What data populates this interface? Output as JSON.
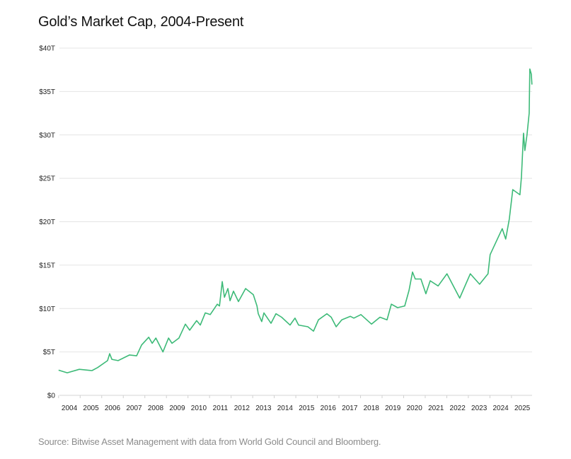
{
  "chart_data": {
    "type": "line",
    "title": "Gold’s Market Cap, 2004-Present",
    "source": "Source: Bitwise Asset Management with data from World Gold Council and Bloomberg.",
    "xlabel": "",
    "ylabel": "",
    "ylim": [
      0,
      40
    ],
    "xlim": [
      2004,
      2025.95
    ],
    "grid": true,
    "line_color": "#3dba78",
    "y_ticks": [
      {
        "value": 0,
        "label": "$0"
      },
      {
        "value": 5,
        "label": "$5T"
      },
      {
        "value": 10,
        "label": "$10T"
      },
      {
        "value": 15,
        "label": "$15T"
      },
      {
        "value": 20,
        "label": "$20T"
      },
      {
        "value": 25,
        "label": "$25T"
      },
      {
        "value": 30,
        "label": "$30T"
      },
      {
        "value": 35,
        "label": "$35T"
      },
      {
        "value": 40,
        "label": "$40T"
      }
    ],
    "x_ticks": [
      "2004",
      "2005",
      "2006",
      "2007",
      "2008",
      "2009",
      "2010",
      "2011",
      "2012",
      "2013",
      "2014",
      "2015",
      "2016",
      "2017",
      "2018",
      "2019",
      "2020",
      "2021",
      "2022",
      "2023",
      "2024",
      "2025"
    ],
    "series": [
      {
        "x": [
          2004.0,
          2004.4,
          2004.96,
          2005.55,
          2005.81,
          2006.27,
          2006.37,
          2006.47,
          2006.76,
          2007.29,
          2007.62,
          2007.85,
          2008.18,
          2008.34,
          2008.51,
          2008.84,
          2009.1,
          2009.26,
          2009.58,
          2009.88,
          2010.08,
          2010.4,
          2010.57,
          2010.8,
          2011.03,
          2011.36,
          2011.46,
          2011.59,
          2011.69,
          2011.85,
          2011.95,
          2012.11,
          2012.34,
          2012.67,
          2013.03,
          2013.2,
          2013.26,
          2013.42,
          2013.52,
          2013.85,
          2014.08,
          2014.34,
          2014.73,
          2014.96,
          2015.13,
          2015.56,
          2015.82,
          2016.05,
          2016.44,
          2016.64,
          2016.87,
          2017.13,
          2017.53,
          2017.69,
          2018.02,
          2018.51,
          2018.9,
          2019.23,
          2019.43,
          2019.72,
          2020.05,
          2020.25,
          2020.41,
          2020.54,
          2020.8,
          2021.03,
          2021.23,
          2021.6,
          2022.01,
          2022.6,
          2023.09,
          2023.52,
          2023.91,
          2024.01,
          2024.57,
          2024.73,
          2024.9,
          2025.06,
          2025.39,
          2025.46,
          2025.56,
          2025.62,
          2025.72,
          2025.82,
          2025.85,
          2025.92,
          2025.95
        ],
        "y": [
          2.9,
          2.6,
          3.0,
          2.85,
          3.2,
          4.0,
          4.8,
          4.15,
          4.0,
          4.65,
          4.55,
          5.8,
          6.7,
          6.0,
          6.6,
          5.0,
          6.6,
          6.0,
          6.6,
          8.2,
          7.5,
          8.6,
          8.1,
          9.5,
          9.3,
          10.5,
          10.3,
          13.1,
          11.3,
          12.3,
          10.9,
          12.0,
          10.8,
          12.3,
          11.6,
          10.3,
          9.4,
          8.5,
          9.5,
          8.3,
          9.4,
          9.0,
          8.1,
          8.9,
          8.1,
          7.9,
          7.4,
          8.7,
          9.4,
          9.0,
          7.9,
          8.7,
          9.1,
          8.9,
          9.3,
          8.2,
          9.0,
          8.7,
          10.5,
          10.1,
          10.3,
          12.1,
          14.2,
          13.4,
          13.4,
          11.7,
          13.2,
          12.6,
          14.0,
          11.2,
          14.0,
          12.8,
          14.0,
          16.2,
          19.2,
          18.0,
          20.3,
          23.7,
          23.1,
          25.1,
          30.2,
          28.2,
          30.0,
          32.5,
          37.6,
          37.0,
          35.8
        ]
      }
    ]
  }
}
